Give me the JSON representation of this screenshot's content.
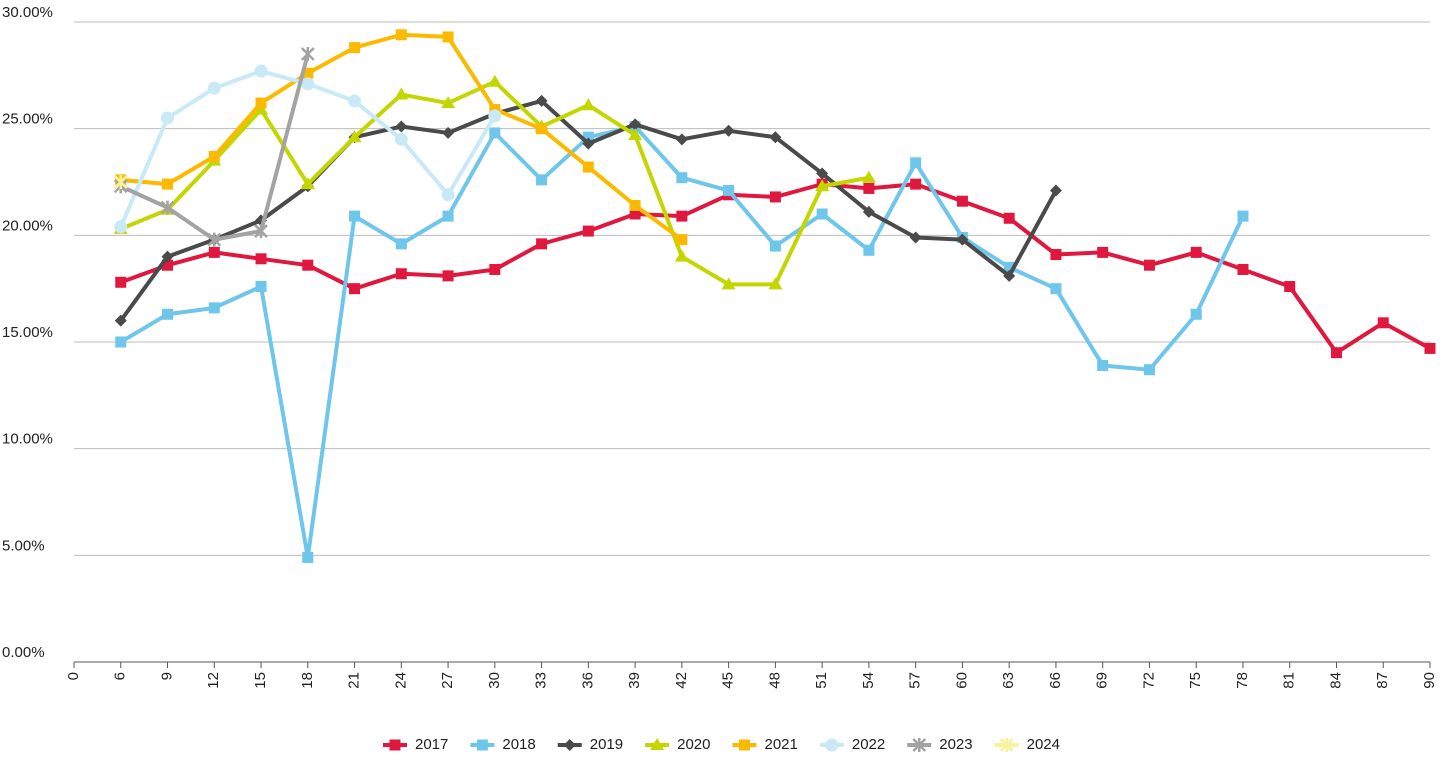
{
  "chart_data": {
    "type": "line",
    "categories": [
      0,
      6,
      9,
      12,
      15,
      18,
      21,
      24,
      27,
      30,
      33,
      36,
      39,
      42,
      45,
      48,
      51,
      54,
      57,
      60,
      63,
      66,
      69,
      72,
      75,
      78,
      81,
      84,
      87,
      90
    ],
    "ylim": [
      0,
      30
    ],
    "yticks": [
      {
        "value": 0,
        "label": "0.00%"
      },
      {
        "value": 5,
        "label": "5.00%"
      },
      {
        "value": 10,
        "label": "10.00%"
      },
      {
        "value": 15,
        "label": "15.00%"
      },
      {
        "value": 20,
        "label": "20.00%"
      },
      {
        "value": 25,
        "label": "25.00%"
      },
      {
        "value": 30,
        "label": "30.00%"
      }
    ],
    "grid": true,
    "legend": "bottom",
    "series": [
      {
        "name": "2017",
        "color": "#e0173e",
        "marker": "square",
        "values": [
          null,
          17.8,
          18.6,
          19.2,
          18.9,
          18.6,
          17.5,
          18.2,
          18.1,
          18.4,
          19.6,
          20.2,
          21.0,
          20.9,
          21.9,
          21.8,
          22.4,
          22.2,
          22.4,
          21.6,
          20.8,
          19.1,
          19.2,
          18.6,
          19.2,
          18.4,
          17.6,
          14.5,
          15.9,
          14.7
        ]
      },
      {
        "name": "2018",
        "color": "#6ec6ea",
        "marker": "square",
        "values": [
          null,
          15.0,
          16.3,
          16.6,
          17.6,
          4.9,
          20.9,
          19.6,
          20.9,
          24.8,
          22.6,
          24.6,
          25.1,
          22.7,
          22.1,
          19.5,
          21.0,
          19.3,
          23.4,
          19.9,
          18.5,
          17.5,
          13.9,
          13.7,
          16.3,
          20.9,
          null,
          null,
          null,
          null
        ]
      },
      {
        "name": "2019",
        "color": "#4a4a4a",
        "marker": "diamond",
        "values": [
          null,
          16.0,
          19.0,
          19.8,
          20.7,
          22.3,
          24.6,
          25.1,
          24.8,
          25.7,
          26.3,
          24.3,
          25.2,
          24.5,
          24.9,
          24.6,
          22.9,
          21.1,
          19.9,
          19.8,
          18.1,
          22.1,
          null,
          null,
          null,
          null,
          null,
          null,
          null,
          null
        ]
      },
      {
        "name": "2020",
        "color": "#c4d600",
        "marker": "triangle",
        "values": [
          null,
          20.3,
          21.2,
          23.5,
          25.9,
          22.4,
          24.6,
          26.6,
          26.2,
          27.2,
          25.1,
          26.1,
          24.7,
          19.0,
          17.7,
          17.7,
          22.3,
          22.7,
          null,
          null,
          null,
          null,
          null,
          null,
          null,
          null,
          null,
          null,
          null,
          null
        ]
      },
      {
        "name": "2021",
        "color": "#fbb900",
        "marker": "square",
        "values": [
          null,
          22.6,
          22.4,
          23.7,
          26.2,
          27.6,
          28.8,
          29.4,
          29.3,
          25.9,
          25.0,
          23.2,
          21.4,
          19.8,
          null,
          null,
          null,
          null,
          null,
          null,
          null,
          null,
          null,
          null,
          null,
          null,
          null,
          null,
          null,
          null
        ]
      },
      {
        "name": "2022",
        "color": "#c9e9f6",
        "marker": "circle",
        "values": [
          null,
          20.4,
          25.5,
          26.9,
          27.7,
          27.1,
          26.3,
          24.5,
          21.9,
          25.6,
          null,
          null,
          null,
          null,
          null,
          null,
          null,
          null,
          null,
          null,
          null,
          null,
          null,
          null,
          null,
          null,
          null,
          null,
          null,
          null
        ]
      },
      {
        "name": "2023",
        "color": "#a3a3a3",
        "marker": "star",
        "values": [
          null,
          22.3,
          21.3,
          19.8,
          20.2,
          28.5,
          null,
          null,
          null,
          null,
          null,
          null,
          null,
          null,
          null,
          null,
          null,
          null,
          null,
          null,
          null,
          null,
          null,
          null,
          null,
          null,
          null,
          null,
          null,
          null
        ]
      },
      {
        "name": "2024",
        "color": "#f7f39a",
        "marker": "star",
        "values": [
          null,
          22.5,
          null,
          null,
          null,
          null,
          null,
          null,
          null,
          null,
          null,
          null,
          null,
          null,
          null,
          null,
          null,
          null,
          null,
          null,
          null,
          null,
          null,
          null,
          null,
          null,
          null,
          null,
          null,
          null
        ]
      }
    ]
  }
}
